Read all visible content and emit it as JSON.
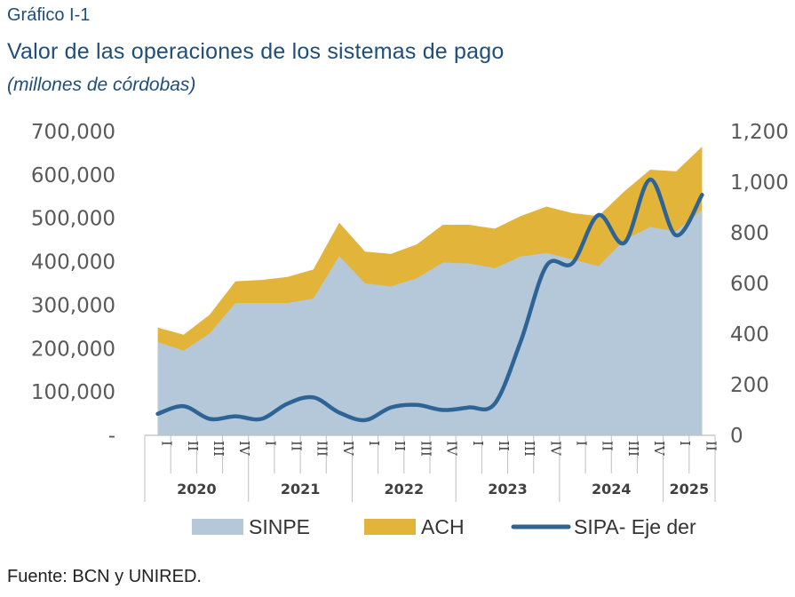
{
  "header": {
    "figure_label": "Gráfico I-1",
    "title": "Valor de las operaciones de los sistemas de pago",
    "subtitle": "(millones de córdobas)"
  },
  "source": "Fuente: BCN y UNIRED.",
  "colors": {
    "sinpe": "#b4c8da",
    "ach": "#e3b43a",
    "sipa": "#2e6495",
    "title": "#1f4e79"
  },
  "chart_data": {
    "type": "area",
    "quarters": [
      "I",
      "II",
      "III",
      "IV",
      "I",
      "II",
      "III",
      "IV",
      "I",
      "II",
      "III",
      "IV",
      "I",
      "II",
      "III",
      "IV",
      "I",
      "II",
      "III",
      "IV",
      "I",
      "II"
    ],
    "years": [
      {
        "label": "2020",
        "span": 4
      },
      {
        "label": "2021",
        "span": 4
      },
      {
        "label": "2022",
        "span": 4
      },
      {
        "label": "2023",
        "span": 4
      },
      {
        "label": "2024",
        "span": 4
      },
      {
        "label": "2025",
        "span": 2
      }
    ],
    "left_axis": {
      "ylim": [
        0,
        700000
      ],
      "ticks": [
        0,
        100000,
        200000,
        300000,
        400000,
        500000,
        600000,
        700000
      ],
      "tick_labels": [
        "-",
        "100,000",
        "200,000",
        "300,000",
        "400,000",
        "500,000",
        "600,000",
        "700,000"
      ]
    },
    "right_axis": {
      "ylim": [
        0,
        1200
      ],
      "ticks": [
        0,
        200,
        400,
        600,
        800,
        1000,
        1200
      ],
      "tick_labels": [
        "0",
        "200",
        "400",
        "600",
        "800",
        "1,000",
        "1,200"
      ]
    },
    "series": [
      {
        "name": "SINPE",
        "kind": "area",
        "axis": "left",
        "values": [
          215000,
          195000,
          235000,
          305000,
          305000,
          305000,
          315000,
          413000,
          350000,
          343000,
          362000,
          398000,
          396000,
          385000,
          412000,
          420000,
          405000,
          390000,
          450000,
          480000,
          470000,
          520000
        ]
      },
      {
        "name": "ACH",
        "kind": "stacked_area",
        "axis": "left",
        "totals": [
          248000,
          232000,
          278000,
          355000,
          358000,
          365000,
          382000,
          490000,
          423000,
          418000,
          440000,
          485000,
          485000,
          476000,
          505000,
          527000,
          512000,
          505000,
          562000,
          612000,
          608000,
          665000
        ]
      },
      {
        "name": "SIPA- Eje der",
        "kind": "line",
        "axis": "right",
        "values": [
          85,
          115,
          65,
          75,
          65,
          125,
          150,
          90,
          60,
          110,
          120,
          100,
          110,
          125,
          370,
          670,
          680,
          870,
          760,
          1010,
          790,
          950
        ]
      }
    ],
    "legend": [
      "SINPE",
      "ACH",
      "SIPA- Eje der"
    ],
    "legend_position": "bottom"
  }
}
